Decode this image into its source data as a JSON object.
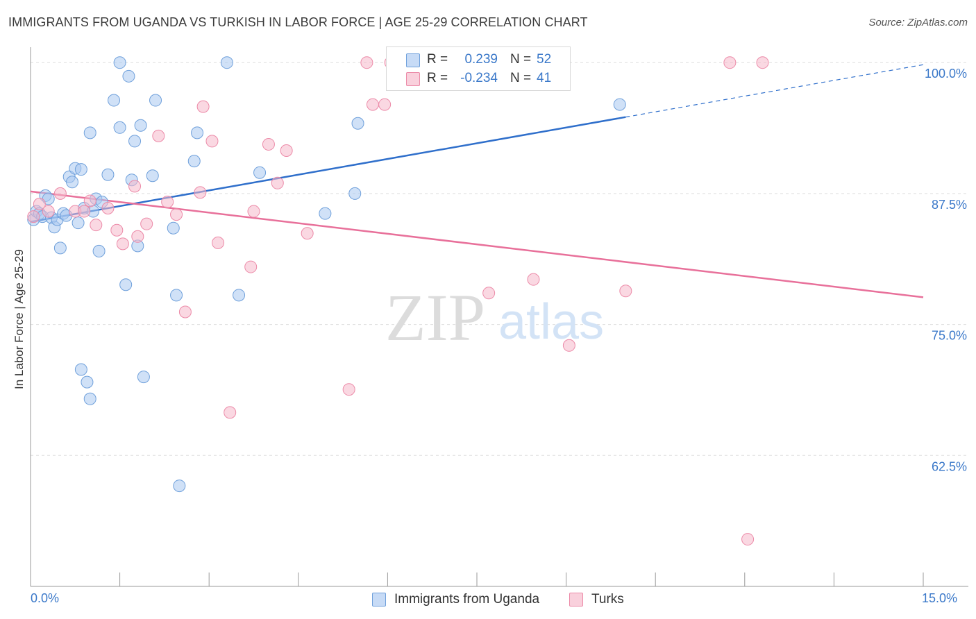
{
  "header": {
    "title": "IMMIGRANTS FROM UGANDA VS TURKISH IN LABOR FORCE | AGE 25-29 CORRELATION CHART",
    "source": "Source: ZipAtlas.com"
  },
  "watermark": {
    "zip": "ZIP",
    "atlas": "atlas"
  },
  "legend": {
    "rows": [
      {
        "r_label": "R =",
        "r_value": "0.239",
        "n_label": "N =",
        "n_value": "52",
        "color": "#a9c8f0"
      },
      {
        "r_label": "R =",
        "r_value": "-0.234",
        "n_label": "N =",
        "n_value": "41",
        "color": "#f5b8ca"
      }
    ]
  },
  "bottom_legend": {
    "items": [
      {
        "label": "Immigrants from Uganda",
        "color": "#a9c8f0"
      },
      {
        "label": "Turks",
        "color": "#f5b8ca"
      }
    ]
  },
  "colors": {
    "blue_point": "#a9c8f0",
    "blue_edge": "#6fa0db",
    "blue_line": "#2f6fcb",
    "pink_point": "#f5b8ca",
    "pink_edge": "#ec8aa8",
    "pink_line": "#e8709a",
    "axis_text": "#3a78c9",
    "grid": "#dddddd"
  },
  "chart_data": {
    "type": "scatter",
    "title": "IMMIGRANTS FROM UGANDA VS TURKISH IN LABOR FORCE | AGE 25-29 CORRELATION CHART",
    "xlabel": "",
    "ylabel": "In Labor Force | Age 25-29",
    "xlim": [
      0,
      15
    ],
    "ylim": [
      50,
      102
    ],
    "x_tick_labels": [
      "0.0%",
      "15.0%"
    ],
    "y_ticks": [
      100,
      87.5,
      75,
      62.5
    ],
    "y_tick_labels": [
      "100.0%",
      "87.5%",
      "75.0%",
      "62.5%"
    ],
    "grid": true,
    "series": [
      {
        "name": "Immigrants from Uganda",
        "x": [
          0.05,
          0.1,
          0.15,
          0.2,
          0.25,
          0.3,
          0.35,
          0.4,
          0.45,
          0.5,
          0.55,
          0.6,
          0.65,
          0.7,
          0.75,
          0.8,
          0.85,
          0.9,
          1.0,
          1.05,
          1.1,
          1.15,
          1.2,
          1.3,
          1.4,
          1.5,
          1.6,
          1.65,
          1.7,
          1.75,
          1.8,
          1.85,
          1.9,
          0.85,
          0.95,
          1.0,
          2.05,
          2.1,
          2.4,
          2.45,
          2.5,
          2.75,
          2.8,
          3.3,
          3.5,
          3.85,
          4.95,
          5.45,
          5.5,
          6.3,
          9.9,
          1.5
        ],
        "y": [
          85.0,
          85.8,
          85.6,
          85.3,
          87.3,
          87.0,
          85.2,
          84.3,
          85.0,
          82.3,
          85.6,
          85.4,
          89.1,
          88.6,
          89.9,
          84.7,
          89.8,
          86.1,
          93.3,
          85.8,
          87.0,
          82.0,
          86.7,
          89.3,
          96.4,
          93.8,
          78.8,
          98.7,
          88.8,
          92.5,
          82.5,
          94.0,
          70.0,
          70.7,
          69.5,
          67.9,
          89.2,
          96.4,
          84.2,
          77.8,
          59.6,
          90.6,
          93.3,
          100.0,
          77.8,
          89.5,
          85.6,
          87.5,
          94.2,
          100.0,
          96.0,
          100.0
        ],
        "trend": {
          "x": [
            0.0,
            10.0
          ],
          "y": [
            84.8,
            94.8
          ],
          "dashed_extension": {
            "x": [
              10.0,
              15.0
            ],
            "y": [
              94.8,
              99.8
            ]
          }
        }
      },
      {
        "name": "Turks",
        "x": [
          0.05,
          0.15,
          0.3,
          0.5,
          0.75,
          0.9,
          1.0,
          1.1,
          1.3,
          1.45,
          1.55,
          1.75,
          1.8,
          1.95,
          2.15,
          2.3,
          2.45,
          2.6,
          2.85,
          2.9,
          3.05,
          3.15,
          3.35,
          3.7,
          3.75,
          4.0,
          4.15,
          4.3,
          4.65,
          5.35,
          5.65,
          5.75,
          5.95,
          6.05,
          7.7,
          8.45,
          9.05,
          10.0,
          11.75,
          12.05,
          12.3
        ],
        "y": [
          85.3,
          86.5,
          85.8,
          87.5,
          85.8,
          85.8,
          86.8,
          84.5,
          86.1,
          84.0,
          82.7,
          88.2,
          83.4,
          84.6,
          93.0,
          86.7,
          85.5,
          76.2,
          87.6,
          95.8,
          92.5,
          82.8,
          66.6,
          80.5,
          85.8,
          92.2,
          88.5,
          91.6,
          83.7,
          68.8,
          100.0,
          96.0,
          96.0,
          100.0,
          78.0,
          79.3,
          73.0,
          78.2,
          100.0,
          54.5,
          100.0
        ],
        "trend": {
          "x": [
            0.0,
            15.0
          ],
          "y": [
            87.7,
            77.6
          ]
        }
      }
    ]
  }
}
